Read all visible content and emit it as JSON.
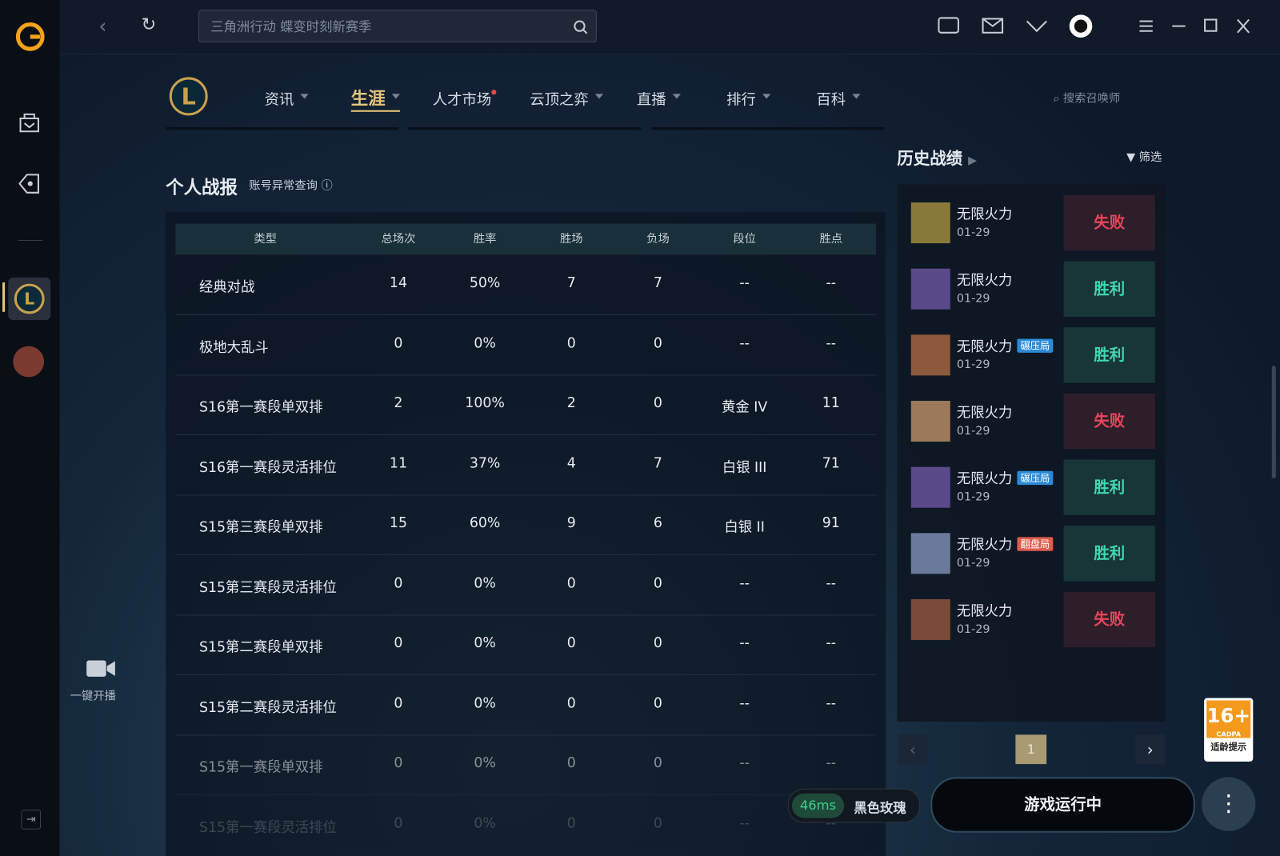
{
  "top_bar": {
    "search_placeholder": "三角洲行动 蝶变时刻新赛季"
  },
  "nav": {
    "items": [
      "资讯",
      "生涯",
      "人才市场",
      "云顶之弈",
      "直播",
      "排行",
      "百科"
    ],
    "search_placeholder": "搜索召唤师"
  },
  "sidebar": {
    "broadcast": "一键开播"
  },
  "stats": {
    "title": "个人战报",
    "link": "账号异常查询",
    "table": {
      "header": [
        "类型",
        "总场次",
        "胜率",
        "胜场",
        "负场",
        "段位",
        "胜点"
      ],
      "rows": [
        [
          "经典对战",
          "14",
          "50%",
          "7",
          "7",
          "--",
          "--"
        ],
        [
          "极地大乱斗",
          "0",
          "0%",
          "0",
          "0",
          "--",
          "--"
        ],
        [
          "S16第一赛段单双排",
          "2",
          "100%",
          "2",
          "0",
          "黄金 IV",
          "11"
        ],
        [
          "S16第一赛段灵活排位",
          "11",
          "37%",
          "4",
          "7",
          "白银 III",
          "71"
        ],
        [
          "S15第三赛段单双排",
          "15",
          "60%",
          "9",
          "6",
          "白银 II",
          "91"
        ],
        [
          "S15第三赛段灵活排位",
          "0",
          "0%",
          "0",
          "0",
          "--",
          "--"
        ],
        [
          "S15第二赛段单双排",
          "0",
          "0%",
          "0",
          "0",
          "--",
          "--"
        ],
        [
          "S15第二赛段灵活排位",
          "0",
          "0%",
          "0",
          "0",
          "--",
          "--"
        ],
        [
          "S15第一赛段单双排",
          "0",
          "0%",
          "0",
          "0",
          "--",
          "--"
        ],
        [
          "S15第一赛段灵活排位",
          "0",
          "0%",
          "0",
          "0",
          "--",
          "--"
        ]
      ]
    }
  },
  "history": {
    "title": "历史战绩",
    "filter": "筛选",
    "page": "1",
    "matches": [
      {
        "mode": "无限火力",
        "date": "01-29",
        "result": "失败"
      },
      {
        "mode": "无限火力",
        "date": "01-29",
        "result": "胜利"
      },
      {
        "mode": "无限火力",
        "date": "01-29",
        "tag": "碾压局",
        "result": "胜利"
      },
      {
        "mode": "无限火力",
        "date": "01-29",
        "result": "失败"
      },
      {
        "mode": "无限火力",
        "date": "01-29",
        "tag": "碾压局",
        "result": "胜利"
      },
      {
        "mode": "无限火力",
        "date": "01-29",
        "tag": "翻盘局",
        "result": "胜利"
      },
      {
        "mode": "无限火力",
        "date": "01-29",
        "result": "失败"
      }
    ]
  },
  "status": {
    "ping": "46ms",
    "server": "黑色玫瑰",
    "game_button": "游戏运行中"
  },
  "age_badge": {
    "rating": "16+",
    "org": "CADPA",
    "note": "适龄提示"
  }
}
